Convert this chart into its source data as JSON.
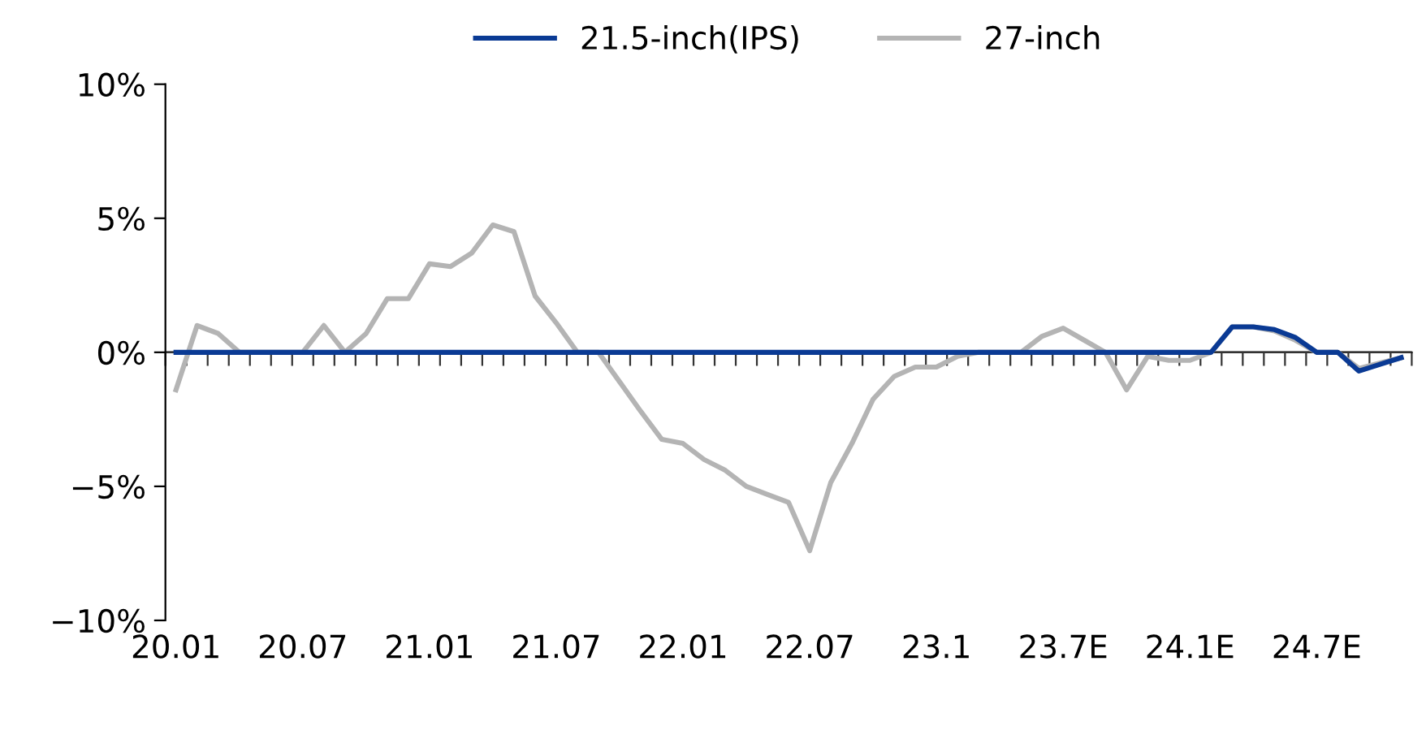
{
  "chart_data": {
    "type": "line",
    "categories": [
      "20.01",
      null,
      null,
      null,
      null,
      null,
      "20.07",
      null,
      null,
      null,
      null,
      null,
      "21.01",
      null,
      null,
      null,
      null,
      null,
      "21.07",
      null,
      null,
      null,
      null,
      null,
      "22.01",
      null,
      null,
      null,
      null,
      null,
      "22.07",
      null,
      null,
      null,
      null,
      null,
      "23.1",
      null,
      null,
      null,
      null,
      null,
      "23.7E",
      null,
      null,
      null,
      null,
      null,
      "24.1E",
      null,
      null,
      null,
      null,
      null,
      "24.7E",
      null,
      null,
      null,
      null
    ],
    "series": [
      {
        "name": "21.5-inch(IPS)",
        "color": "#0a3a94",
        "values": [
          0,
          0,
          0,
          0,
          0,
          0,
          0,
          0,
          0,
          0,
          0,
          0,
          0,
          0,
          0,
          0,
          0,
          0,
          0,
          0,
          0,
          0,
          0,
          0,
          0,
          0,
          0,
          0,
          0,
          0,
          0,
          0,
          0,
          0,
          0,
          0,
          0,
          0,
          0,
          0,
          0,
          0,
          0,
          0,
          0,
          0,
          0,
          0,
          0,
          0,
          0.95,
          0.95,
          0.85,
          0.55,
          0,
          0,
          -0.7,
          -0.45,
          -0.2
        ]
      },
      {
        "name": "27-inch",
        "color": "#b4b4b4",
        "values": [
          -1.4,
          1.0,
          0.7,
          0,
          0,
          0,
          0,
          1.0,
          0,
          0.7,
          2.0,
          2.0,
          3.3,
          3.2,
          3.7,
          4.75,
          4.5,
          2.1,
          1.1,
          0,
          0,
          -1.1,
          -2.2,
          -3.25,
          -3.4,
          -4.0,
          -4.4,
          -5.0,
          -5.3,
          -5.6,
          -7.4,
          -4.85,
          -3.4,
          -1.75,
          -0.9,
          -0.55,
          -0.55,
          -0.15,
          0,
          0,
          0,
          0.6,
          0.9,
          0.45,
          0,
          -1.4,
          -0.15,
          -0.3,
          -0.3,
          0,
          0.95,
          0.95,
          0.8,
          0.45,
          0,
          0,
          -0.6,
          -0.4,
          -0.2
        ]
      }
    ],
    "ylim": [
      -10,
      10
    ],
    "yticks": [
      {
        "value": -10,
        "label": "−10%"
      },
      {
        "value": -5,
        "label": "−5%"
      },
      {
        "value": 0,
        "label": "0%"
      },
      {
        "value": 5,
        "label": "5%"
      },
      {
        "value": 10,
        "label": "10%"
      }
    ],
    "legend": "top",
    "grid": false,
    "marker": "none",
    "line_style": "solid"
  }
}
